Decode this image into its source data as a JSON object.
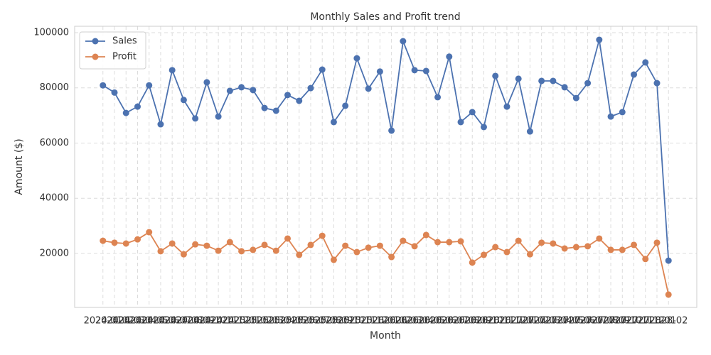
{
  "chart_data": {
    "type": "line",
    "title": "Monthly Sales and Profit trend",
    "xlabel": "Month",
    "ylabel": "Amount ($)",
    "categories": [
      "2024-01",
      "2024-02",
      "2024-03",
      "2024-04",
      "2024-05",
      "2024-06",
      "2024-07",
      "2024-08",
      "2024-09",
      "2024-10",
      "2024-11",
      "2024-12",
      "2025-01",
      "2025-02",
      "2025-03",
      "2025-04",
      "2025-05",
      "2025-06",
      "2025-07",
      "2025-08",
      "2025-09",
      "2025-10",
      "2025-11",
      "2025-12",
      "2026-01",
      "2026-02",
      "2026-03",
      "2026-04",
      "2026-05",
      "2026-06",
      "2026-07",
      "2026-08",
      "2026-09",
      "2026-10",
      "2026-11",
      "2026-12",
      "2027-01",
      "2027-02",
      "2027-03",
      "2027-04",
      "2027-05",
      "2027-06",
      "2027-07",
      "2027-08",
      "2027-09",
      "2027-10",
      "2027-11",
      "2027-12",
      "2028-01",
      "2028-02"
    ],
    "series": [
      {
        "name": "Sales",
        "color": "#4c72b0",
        "values": [
          80900,
          78300,
          70900,
          73200,
          80900,
          66800,
          86400,
          75600,
          68900,
          82000,
          69600,
          78900,
          80200,
          79200,
          72700,
          71700,
          77400,
          75300,
          79900,
          86600,
          67600,
          73500,
          90700,
          79700,
          85900,
          64500,
          96900,
          86400,
          86100,
          76600,
          91300,
          67600,
          71200,
          65800,
          84300,
          73200,
          83300,
          64200,
          82500,
          82500,
          80200,
          76300,
          81700,
          97400,
          69600,
          71200,
          84800,
          89200,
          81700,
          17400
        ]
      },
      {
        "name": "Profit",
        "color": "#dd8452",
        "values": [
          24600,
          23900,
          23600,
          25100,
          27700,
          20800,
          23600,
          19700,
          23300,
          22800,
          21000,
          24100,
          20800,
          21300,
          23100,
          21000,
          25400,
          19500,
          23100,
          26400,
          17700,
          22800,
          20500,
          22100,
          22800,
          18700,
          24600,
          22600,
          26700,
          24100,
          24100,
          24400,
          16700,
          19500,
          22300,
          20500,
          24600,
          19700,
          23900,
          23600,
          21800,
          22300,
          22600,
          25400,
          21300,
          21300,
          23100,
          18000,
          23900,
          5100
        ]
      }
    ],
    "ylim": [
      450,
      102300
    ],
    "yticks": [
      20000,
      40000,
      60000,
      80000,
      100000
    ],
    "grid": true,
    "legend": "upper left"
  }
}
